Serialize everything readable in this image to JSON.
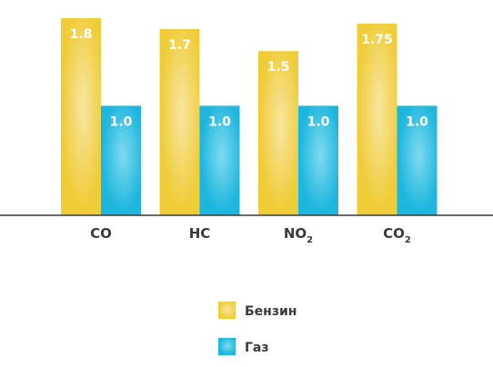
{
  "chart_data": {
    "type": "bar",
    "categories": [
      {
        "base": "CO",
        "sub": ""
      },
      {
        "base": "HC",
        "sub": ""
      },
      {
        "base": "NO",
        "sub": "2"
      },
      {
        "base": "CO",
        "sub": "2"
      }
    ],
    "series": [
      {
        "name": "Бензин",
        "color": "#f0cc36",
        "highlight": "#f8e6a2",
        "values": [
          1.8,
          1.7,
          1.5,
          1.75
        ],
        "labels": [
          "1.8",
          "1.7",
          "1.5",
          "1.75"
        ]
      },
      {
        "name": "Газ",
        "color": "#1cb6de",
        "highlight": "#7fdbf0",
        "values": [
          1.0,
          1.0,
          1.0,
          1.0
        ],
        "labels": [
          "1.0",
          "1.0",
          "1.0",
          "1.0"
        ]
      }
    ],
    "ylim": [
      0,
      1.8
    ],
    "grid": false,
    "legend_position": "bottom-center",
    "title": "",
    "xlabel": "",
    "ylabel": ""
  }
}
